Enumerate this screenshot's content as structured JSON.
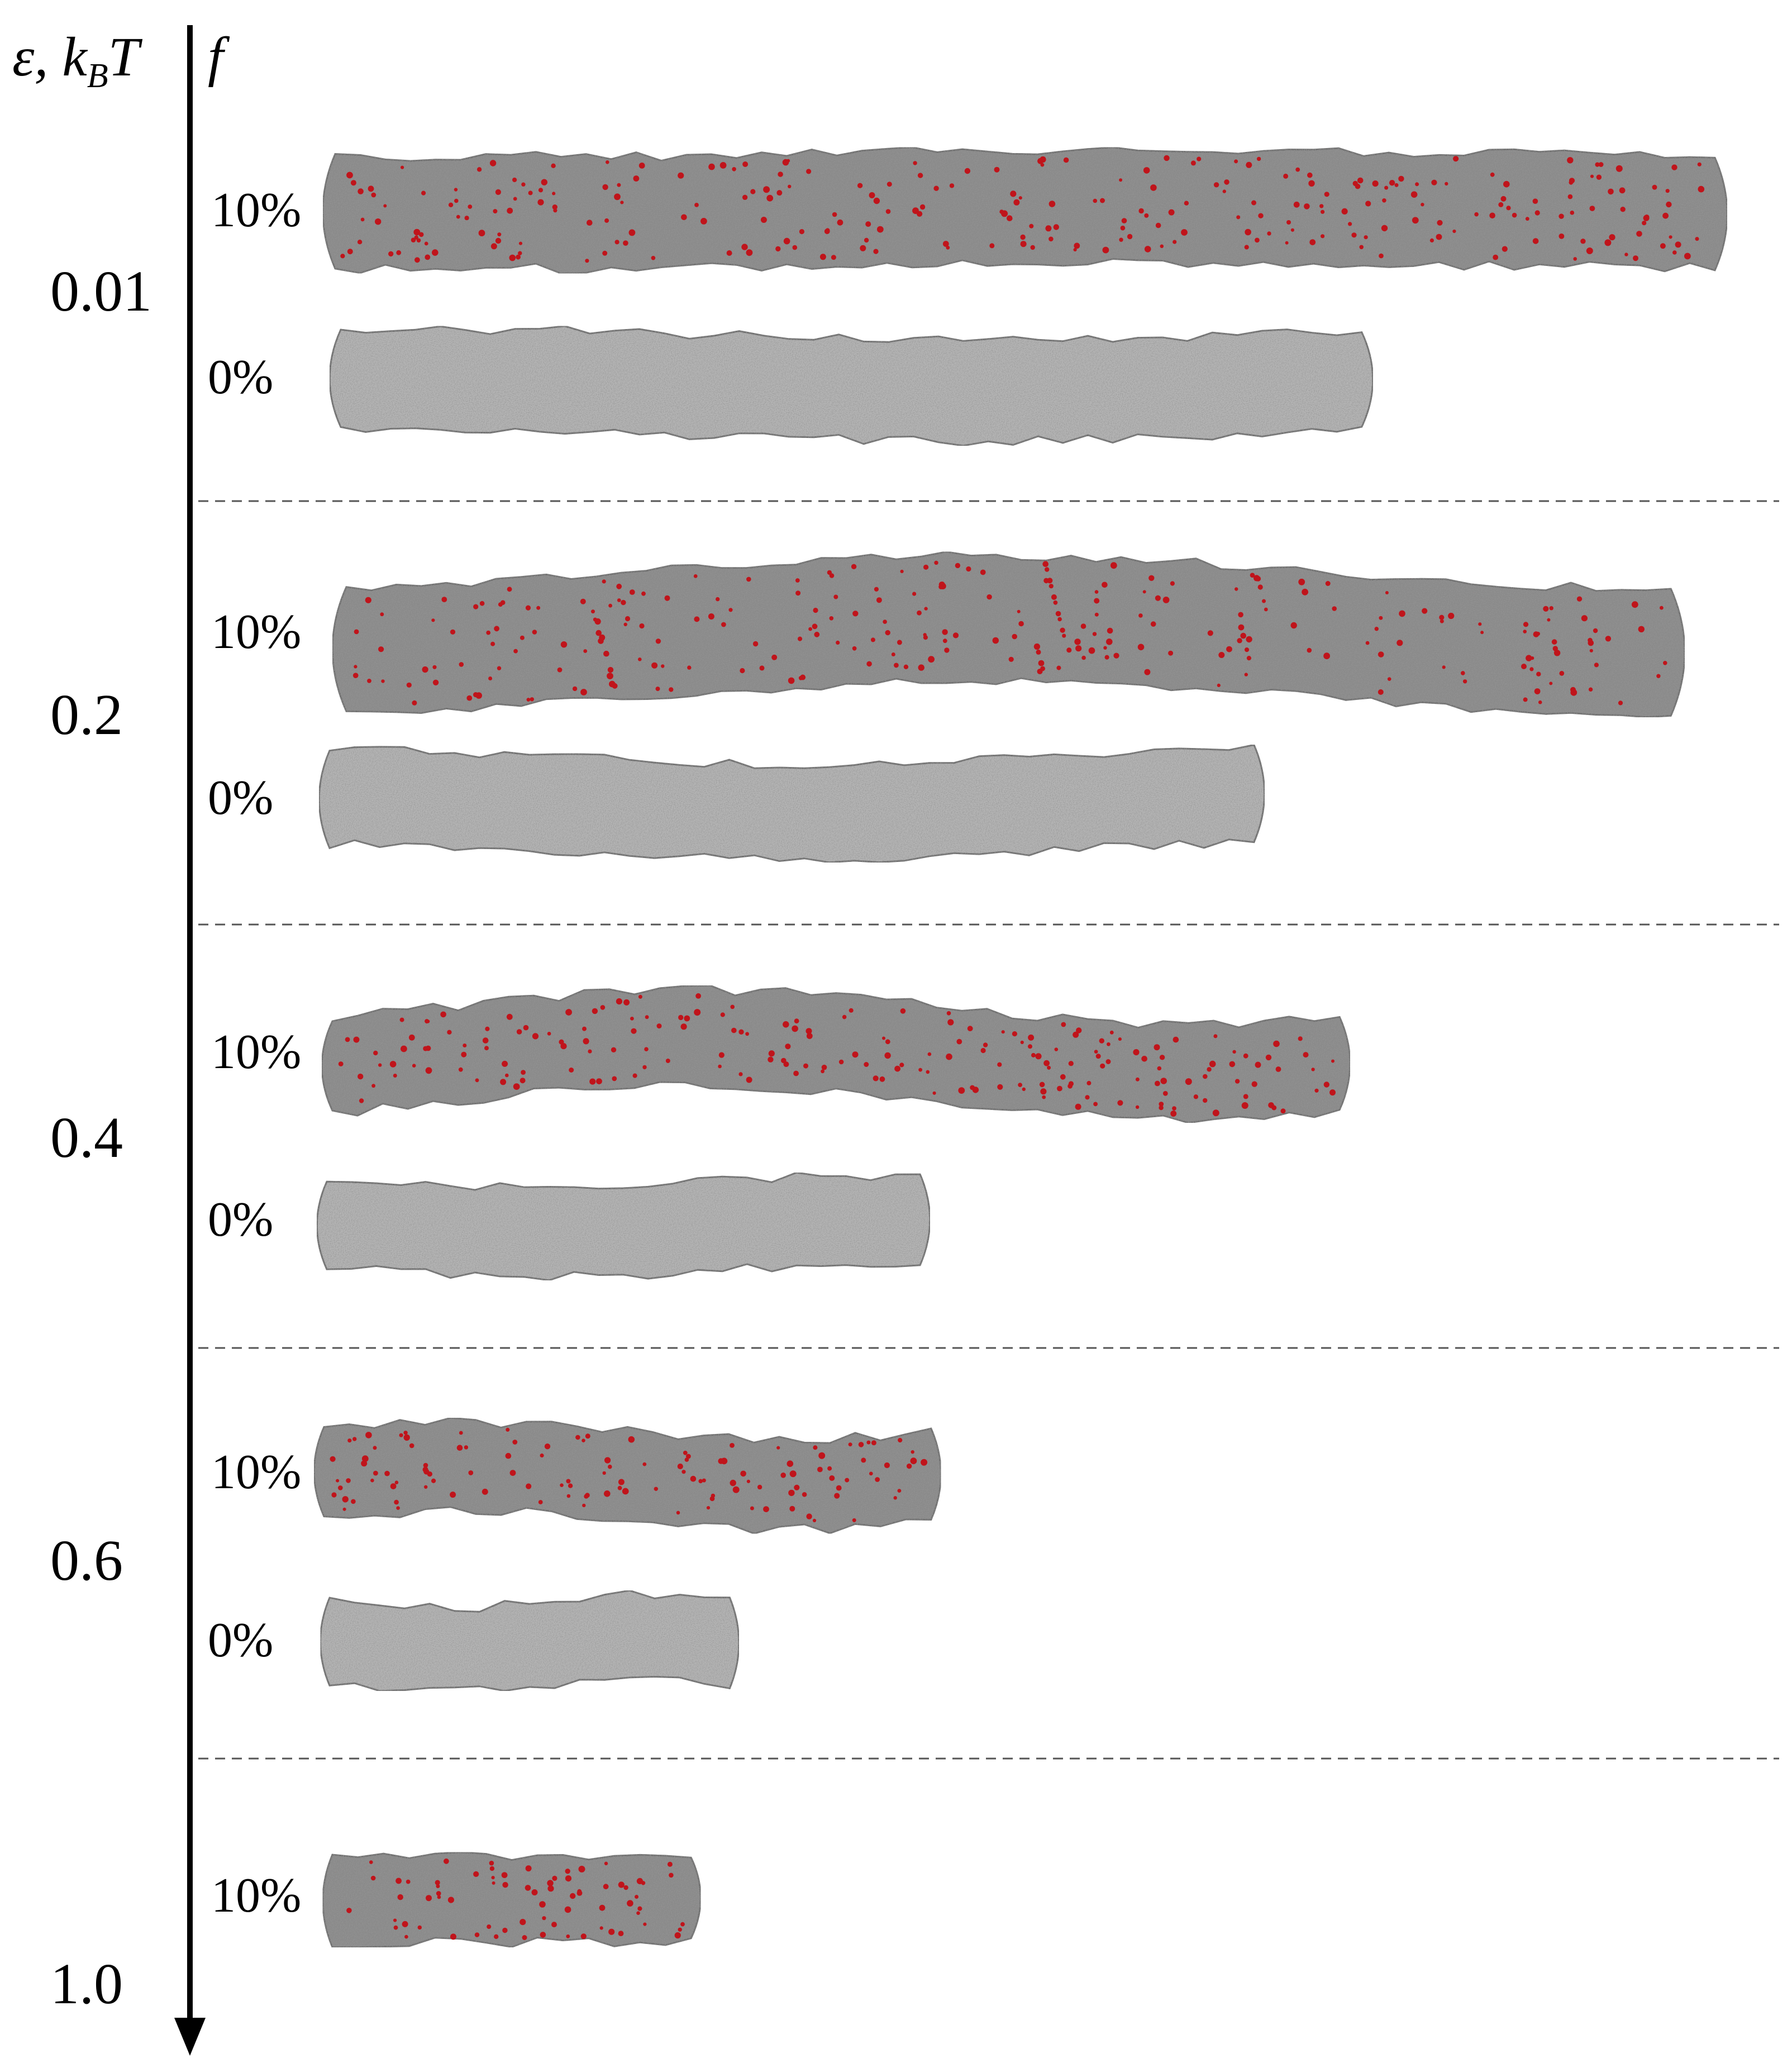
{
  "header": {
    "epsilon_label": "ε, k",
    "epsilon_sub": "B",
    "epsilon_unit": "T",
    "fraction_label": "f"
  },
  "groups": [
    {
      "epsilon": "0.01",
      "rows": [
        {
          "fraction": "10%",
          "charged": true,
          "length_rel": 1.0
        },
        {
          "fraction": "0%",
          "charged": false,
          "length_rel": 0.74
        }
      ]
    },
    {
      "epsilon": "0.2",
      "rows": [
        {
          "fraction": "10%",
          "charged": true,
          "length_rel": 0.96
        },
        {
          "fraction": "0%",
          "charged": false,
          "length_rel": 0.67
        }
      ]
    },
    {
      "epsilon": "0.4",
      "rows": [
        {
          "fraction": "10%",
          "charged": true,
          "length_rel": 0.73
        },
        {
          "fraction": "0%",
          "charged": false,
          "length_rel": 0.43
        }
      ]
    },
    {
      "epsilon": "0.6",
      "rows": [
        {
          "fraction": "10%",
          "charged": true,
          "length_rel": 0.44
        },
        {
          "fraction": "0%",
          "charged": false,
          "length_rel": 0.29
        }
      ]
    },
    {
      "epsilon": "1.0",
      "rows": [
        {
          "fraction": "10%",
          "charged": true,
          "length_rel": 0.26
        }
      ]
    }
  ],
  "colors": {
    "axis": "#000000",
    "separator": "#555555",
    "polymer_gray": "#8a8a8a",
    "polymer_dark": "#6e6e6e",
    "polymer_light": "#b5b5b5",
    "charged_red": "#c0141b"
  }
}
